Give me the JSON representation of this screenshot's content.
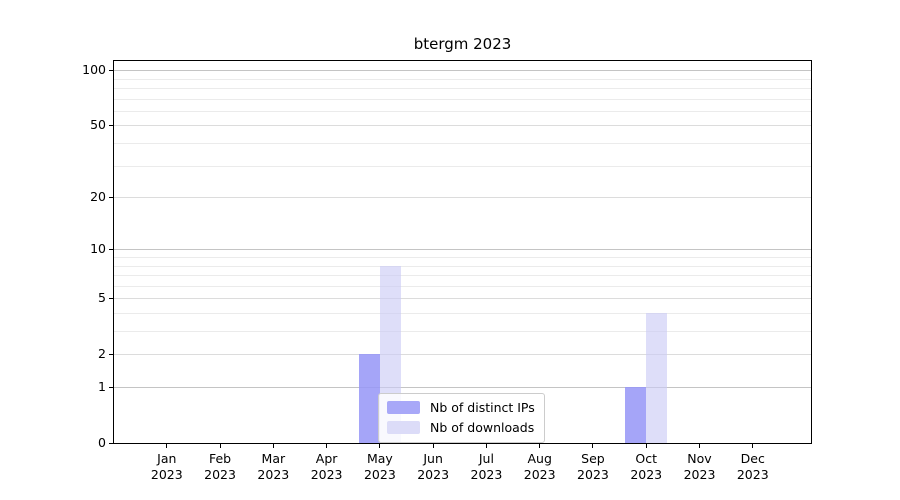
{
  "chart_data": {
    "type": "bar",
    "title": "btergm 2023",
    "categories": [
      "Jan 2023",
      "Feb 2023",
      "Mar 2023",
      "Apr 2023",
      "May 2023",
      "Jun 2023",
      "Jul 2023",
      "Aug 2023",
      "Sep 2023",
      "Oct 2023",
      "Nov 2023",
      "Dec 2023"
    ],
    "series": [
      {
        "name": "Nb of distinct IPs",
        "color": "#a8a8f8",
        "fill": "rgba(150,150,247,0.86)",
        "values": [
          0,
          0,
          0,
          0,
          2,
          0,
          0,
          0,
          0,
          1,
          0,
          0
        ]
      },
      {
        "name": "Nb of downloads",
        "color": "#dcdcf8",
        "fill": "rgba(201,201,246,0.62)",
        "values": [
          0,
          0,
          0,
          0,
          8,
          0,
          0,
          0,
          0,
          4,
          0,
          0
        ]
      }
    ],
    "yscale": "log1p",
    "ylim": [
      0,
      112
    ],
    "y_major_ticks": [
      0,
      1,
      2,
      5,
      10,
      20,
      50,
      100
    ],
    "y_minor_ticks": [
      3,
      4,
      6,
      7,
      8,
      9,
      30,
      40,
      60,
      70,
      80,
      90
    ],
    "grid": true,
    "legend_position": "lower center"
  },
  "colors": {
    "axis": "#000000",
    "grid_decade": "#c4c4c4",
    "grid_major": "#dcdcdc",
    "grid_minor": "#ebebeb",
    "legend_border": "#cccccc",
    "background": "#ffffff"
  }
}
